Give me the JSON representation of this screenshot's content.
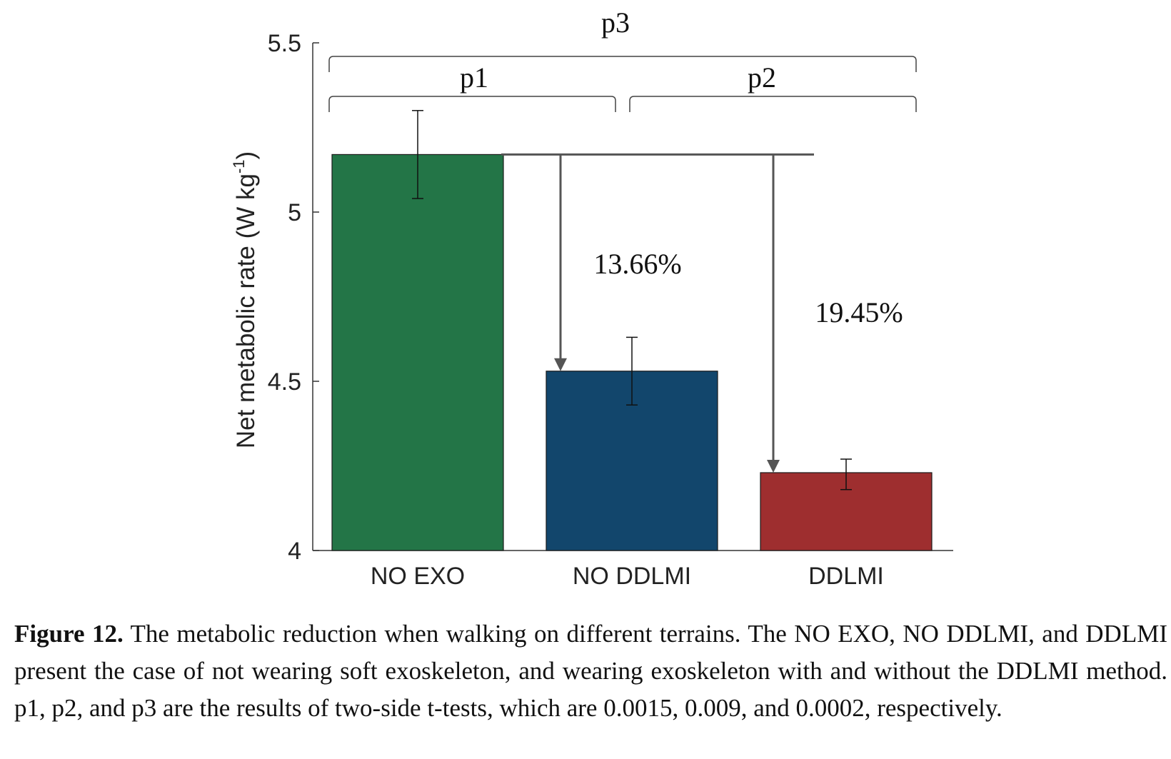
{
  "chart_data": {
    "type": "bar",
    "ylabel": "Net metabolic rate (W kg",
    "ylabel_sup": "-1",
    "ylabel_end": ")",
    "ylim": [
      4,
      5.5
    ],
    "yticks": [
      4,
      4.5,
      5,
      5.5
    ],
    "ytick_labels": [
      "4",
      "4.5",
      "5",
      "5.5"
    ],
    "categories": [
      "NO EXO",
      "NO DDLMI",
      "DDLMI"
    ],
    "values": [
      5.17,
      4.53,
      4.23
    ],
    "error": [
      {
        "low": 5.04,
        "high": 5.3
      },
      {
        "low": 4.43,
        "high": 4.63
      },
      {
        "low": 4.18,
        "high": 4.27
      }
    ],
    "colors": [
      "#237547",
      "#12466c",
      "#9e2e2f"
    ],
    "grid": false,
    "annotations": {
      "reductions": [
        "13.66%",
        "19.45%"
      ],
      "significance": [
        "p1",
        "p2",
        "p3"
      ]
    }
  },
  "caption": {
    "label": "Figure 12.",
    "text": " The metabolic reduction when walking on different terrains. The NO EXO, NO DDLMI, and DDLMI present the case of not wearing soft exoskeleton, and wearing exoskeleton with and without the DDLMI method.  p1, p2, and p3 are the results of two-side t-tests, which are 0.0015, 0.009, and 0.0002, respectively."
  }
}
